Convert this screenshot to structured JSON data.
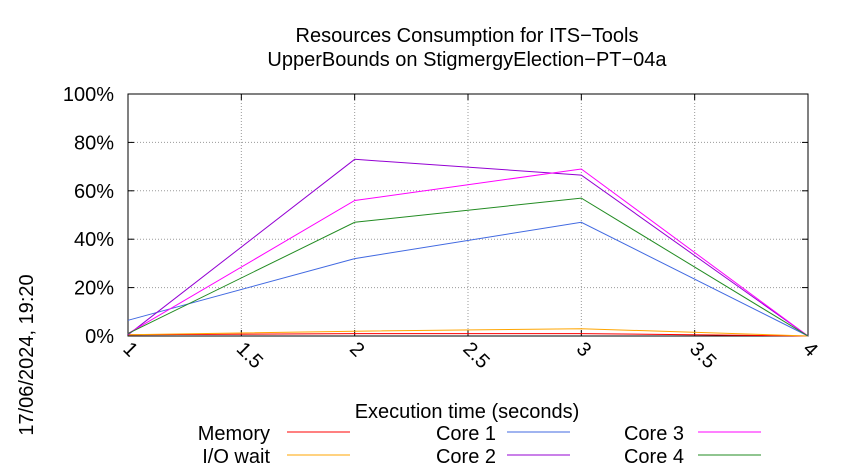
{
  "chart_data": {
    "type": "line",
    "title": "Resources Consumption for ITS−Tools",
    "subtitle": "UpperBounds on StigmergyElection−PT−04a",
    "xlabel": "Execution time (seconds)",
    "ylabel": "",
    "side_label": "17/06/2024, 19:20",
    "xlim": [
      1,
      4
    ],
    "ylim": [
      0,
      100
    ],
    "x_ticks": [
      "1",
      "1.5",
      "2",
      "2.5",
      "3",
      "3.5",
      "4"
    ],
    "y_ticks": [
      "0%",
      "20%",
      "40%",
      "60%",
      "80%",
      "100%"
    ],
    "grid": true,
    "legend_position": "bottom",
    "series": [
      {
        "name": "Memory",
        "color": "#ff0000",
        "x": [
          1,
          2,
          3,
          4
        ],
        "y": [
          0.5,
          1.0,
          1.0,
          0
        ]
      },
      {
        "name": "I/O wait",
        "color": "#ffa500",
        "x": [
          1,
          2,
          3,
          4
        ],
        "y": [
          0.5,
          2.0,
          3.0,
          0
        ]
      },
      {
        "name": "Core 1",
        "color": "#4169e1",
        "x": [
          1,
          2,
          3,
          4
        ],
        "y": [
          6.5,
          32,
          47,
          0
        ]
      },
      {
        "name": "Core 2",
        "color": "#9400d3",
        "x": [
          1,
          2,
          3,
          4
        ],
        "y": [
          0.5,
          73,
          66.5,
          0
        ]
      },
      {
        "name": "Core 3",
        "color": "#ff00ff",
        "x": [
          1,
          2,
          3,
          4
        ],
        "y": [
          1,
          56,
          69,
          0
        ]
      },
      {
        "name": "Core 4",
        "color": "#228b22",
        "x": [
          1,
          2,
          3,
          4
        ],
        "y": [
          1,
          47,
          57,
          0
        ]
      }
    ]
  }
}
